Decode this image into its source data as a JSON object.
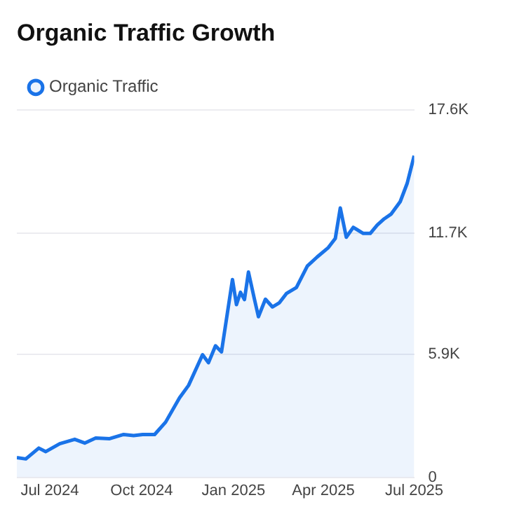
{
  "chart_data": {
    "type": "area",
    "title": "Organic Traffic Growth",
    "x": [
      "2024-05-29",
      "2024-06-07",
      "2024-06-20",
      "2024-06-27",
      "2024-07-11",
      "2024-07-26",
      "2024-08-05",
      "2024-08-16",
      "2024-08-30",
      "2024-09-13",
      "2024-09-23",
      "2024-10-02",
      "2024-10-14",
      "2024-10-25",
      "2024-11-08",
      "2024-11-17",
      "2024-12-01",
      "2024-12-07",
      "2024-12-14",
      "2024-12-20",
      "2024-12-31",
      "2025-01-04",
      "2025-01-08",
      "2025-01-12",
      "2025-01-16",
      "2025-01-22",
      "2025-01-26",
      "2025-02-02",
      "2025-02-09",
      "2025-02-16",
      "2025-02-23",
      "2025-03-05",
      "2025-03-16",
      "2025-03-26",
      "2025-04-06",
      "2025-04-13",
      "2025-04-18",
      "2025-04-24",
      "2025-05-01",
      "2025-05-11",
      "2025-05-18",
      "2025-05-25",
      "2025-06-01",
      "2025-06-08",
      "2025-06-17",
      "2025-06-24",
      "2025-07-01"
    ],
    "series": [
      {
        "name": "Organic Traffic",
        "color": "#1a73e8",
        "values": [
          940,
          880,
          1400,
          1230,
          1610,
          1820,
          1640,
          1880,
          1850,
          2050,
          2000,
          2050,
          2050,
          2640,
          3810,
          4400,
          5870,
          5490,
          6300,
          6010,
          9470,
          8270,
          8860,
          8510,
          9830,
          8530,
          7690,
          8530,
          8160,
          8360,
          8800,
          9090,
          10120,
          10560,
          11000,
          11440,
          12900,
          11500,
          11970,
          11680,
          11680,
          12080,
          12380,
          12610,
          13200,
          14080,
          15400
        ]
      }
    ],
    "xlim": [
      "2024-05-29",
      "2025-07-01"
    ],
    "xticks": [
      {
        "value": "2024-07-01",
        "label": "Jul 2024"
      },
      {
        "value": "2024-10-01",
        "label": "Oct 2024"
      },
      {
        "value": "2025-01-01",
        "label": "Jan 2025"
      },
      {
        "value": "2025-04-01",
        "label": "Apr 2025"
      },
      {
        "value": "2025-07-01",
        "label": "Jul 2025"
      }
    ],
    "ylim": [
      0,
      17600
    ],
    "yticks": [
      0,
      {
        "value": 5900,
        "label": "5.9K"
      },
      {
        "value": 11700,
        "label": "11.7K"
      },
      {
        "value": 17600,
        "label": "17.6K"
      }
    ],
    "grid": "y",
    "legend": "top left",
    "marker": "none",
    "line_style": "solid"
  }
}
